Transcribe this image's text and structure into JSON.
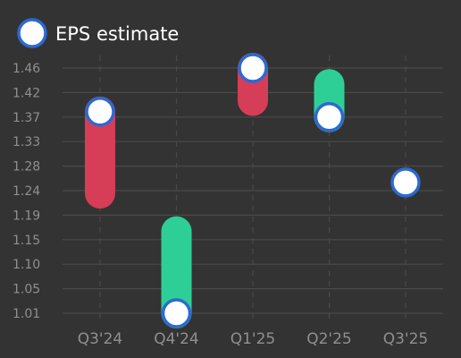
{
  "chart_data": {
    "type": "bar",
    "subtype": "eps-surprise-range",
    "legend": {
      "label": "EPS estimate",
      "placement": "top-left"
    },
    "categories": [
      "Q3'24",
      "Q4'24",
      "Q1'25",
      "Q2'25",
      "Q3'25"
    ],
    "y_ticks": [
      "1.01",
      "1.05",
      "1.10",
      "1.15",
      "1.19",
      "1.24",
      "1.28",
      "1.33",
      "1.37",
      "1.42",
      "1.46"
    ],
    "ylim": [
      1.01,
      1.46
    ],
    "grid": true,
    "series": [
      {
        "name": "EPS estimate",
        "values": [
          1.38,
          1.01,
          1.46,
          1.37,
          1.25
        ]
      },
      {
        "values": [
          1.23,
          1.16,
          1.4,
          1.43,
          null
        ]
      }
    ]
  },
  "colors": {
    "background": "#333333",
    "grid": "#4a4a4a",
    "tick_text": "#8f8f8f",
    "miss": "#d63d56",
    "beat": "#2ecf96",
    "marker_fill": "#ffffff",
    "marker_stroke": "#2d69d1",
    "legend_text": "#ffffff"
  }
}
